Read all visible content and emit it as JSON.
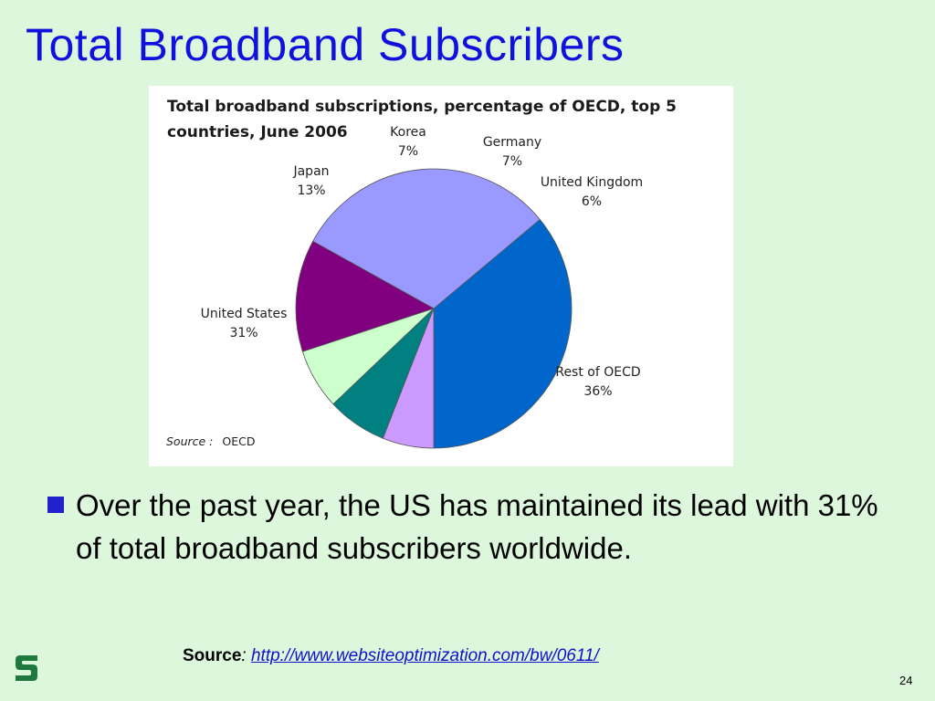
{
  "slide": {
    "title": "Total Broadband Subscribers",
    "bullet": "Over the past year, the US has maintained its lead with 31% of total broadband subscribers worldwide.",
    "source_label": "Source",
    "source_colon": ":",
    "source_url": "http://www.websiteoptimization.com/bw/0611/",
    "page_number": "24",
    "logo_icon": "spartan-s-logo-icon"
  },
  "chart_data": {
    "type": "pie",
    "title_line1": "Total broadband subscriptions, percentage of OECD, top 5",
    "title_line2": "countries, June 2006",
    "source_key": "Source :",
    "source_value": "OECD",
    "slices": [
      {
        "name": "Rest of OECD",
        "value": 36,
        "value_label": "36%",
        "color": "#0066cc"
      },
      {
        "name": "United States",
        "value": 31,
        "value_label": "31%",
        "color": "#9999ff"
      },
      {
        "name": "Japan",
        "value": 13,
        "value_label": "13%",
        "color": "#800080"
      },
      {
        "name": "Korea",
        "value": 7,
        "value_label": "7%",
        "color": "#ccffcc"
      },
      {
        "name": "Germany",
        "value": 7,
        "value_label": "7%",
        "color": "#008080"
      },
      {
        "name": "United Kingdom",
        "value": 6,
        "value_label": "6%",
        "color": "#cc99ff"
      }
    ]
  }
}
